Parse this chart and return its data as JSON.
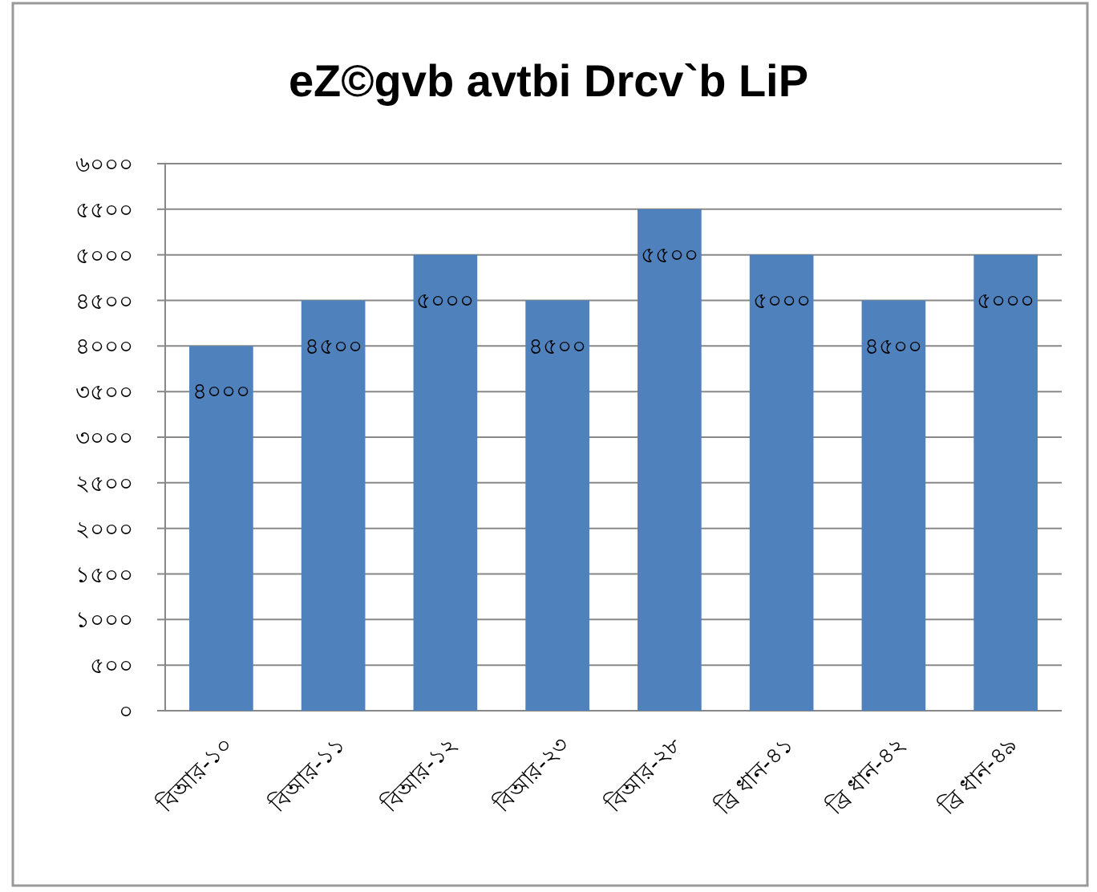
{
  "chart_data": {
    "type": "bar",
    "title": "eZ©gvb avtbi Drcv`b LiP",
    "categories": [
      "বিআর-১০",
      "বিআর-১১",
      "বিআর-১২",
      "বিআর-২৩",
      "বিআর-২৮",
      "ব্রি ধান-৪১",
      "ব্রি ধান-৪২",
      "ব্রি ধান-৪৯"
    ],
    "values": [
      4000,
      4500,
      5000,
      4500,
      5500,
      5000,
      4500,
      5000
    ],
    "value_labels": [
      "৪০০০",
      "৪৫০০",
      "৫০০০",
      "৪৫০০",
      "৫৫০০",
      "৫০০০",
      "৪৫০০",
      "৫০০০"
    ],
    "color": "#4f81bd",
    "ylim": [
      0,
      6000
    ],
    "yticks": [
      {
        "value": 0,
        "label": "০"
      },
      {
        "value": 500,
        "label": "৫০০"
      },
      {
        "value": 1000,
        "label": "১০০০"
      },
      {
        "value": 1500,
        "label": "১৫০০"
      },
      {
        "value": 2000,
        "label": "২০০০"
      },
      {
        "value": 2500,
        "label": "২৫০০"
      },
      {
        "value": 3000,
        "label": "৩০০০"
      },
      {
        "value": 3500,
        "label": "৩৫০০"
      },
      {
        "value": 4000,
        "label": "৪০০০"
      },
      {
        "value": 4500,
        "label": "৪৫০০"
      },
      {
        "value": 5000,
        "label": "৫০০০"
      },
      {
        "value": 5500,
        "label": "৫৫০০"
      },
      {
        "value": 6000,
        "label": "৬০০০"
      }
    ],
    "grid": "y"
  }
}
